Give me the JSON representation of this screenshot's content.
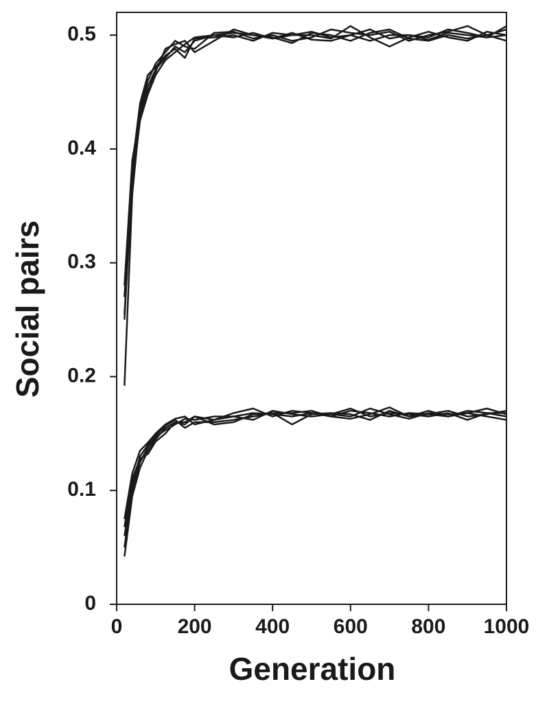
{
  "chart_data": {
    "type": "line",
    "x_label": "Generation",
    "y_label": "Social pairs",
    "x": [
      20,
      40,
      60,
      80,
      100,
      125,
      150,
      175,
      200,
      250,
      300,
      350,
      400,
      450,
      500,
      550,
      600,
      650,
      700,
      750,
      800,
      850,
      900,
      950,
      1000
    ],
    "series": [
      {
        "color": "#1a1a1a",
        "values": [
          0.192,
          0.36,
          0.43,
          0.455,
          0.47,
          0.48,
          0.49,
          0.485,
          0.495,
          0.5,
          0.498,
          0.502,
          0.497,
          0.5,
          0.503,
          0.498,
          0.5,
          0.505,
          0.497,
          0.5,
          0.496,
          0.502,
          0.5,
          0.498,
          0.5
        ]
      },
      {
        "color": "#1a1a1a",
        "values": [
          0.25,
          0.38,
          0.435,
          0.46,
          0.475,
          0.485,
          0.495,
          0.49,
          0.488,
          0.502,
          0.503,
          0.497,
          0.5,
          0.495,
          0.498,
          0.505,
          0.502,
          0.5,
          0.503,
          0.495,
          0.5,
          0.503,
          0.508,
          0.5,
          0.495
        ]
      },
      {
        "color": "#1a1a1a",
        "values": [
          0.27,
          0.385,
          0.44,
          0.465,
          0.472,
          0.482,
          0.488,
          0.48,
          0.497,
          0.498,
          0.5,
          0.495,
          0.502,
          0.5,
          0.5,
          0.497,
          0.508,
          0.498,
          0.49,
          0.498,
          0.503,
          0.498,
          0.495,
          0.503,
          0.5
        ]
      },
      {
        "color": "#1a1a1a",
        "values": [
          0.28,
          0.39,
          0.43,
          0.45,
          0.468,
          0.488,
          0.492,
          0.495,
          0.485,
          0.495,
          0.505,
          0.5,
          0.498,
          0.493,
          0.502,
          0.5,
          0.495,
          0.502,
          0.505,
          0.497,
          0.495,
          0.5,
          0.497,
          0.5,
          0.505
        ]
      },
      {
        "color": "#1a1a1a",
        "values": [
          0.255,
          0.37,
          0.425,
          0.448,
          0.465,
          0.478,
          0.485,
          0.492,
          0.498,
          0.5,
          0.502,
          0.5,
          0.497,
          0.502,
          0.496,
          0.495,
          0.5,
          0.495,
          0.5,
          0.5,
          0.498,
          0.505,
          0.502,
          0.498,
          0.508
        ]
      },
      {
        "color": "#1a1a1a",
        "values": [
          0.042,
          0.095,
          0.12,
          0.135,
          0.145,
          0.155,
          0.16,
          0.158,
          0.165,
          0.162,
          0.165,
          0.168,
          0.167,
          0.165,
          0.168,
          0.167,
          0.172,
          0.165,
          0.168,
          0.167,
          0.165,
          0.168,
          0.162,
          0.168,
          0.165
        ]
      },
      {
        "color": "#1a1a1a",
        "values": [
          0.06,
          0.105,
          0.13,
          0.14,
          0.148,
          0.157,
          0.162,
          0.155,
          0.16,
          0.16,
          0.162,
          0.165,
          0.168,
          0.158,
          0.167,
          0.168,
          0.167,
          0.162,
          0.17,
          0.165,
          0.17,
          0.165,
          0.168,
          0.172,
          0.167
        ]
      },
      {
        "color": "#1a1a1a",
        "values": [
          0.075,
          0.115,
          0.135,
          0.142,
          0.15,
          0.158,
          0.163,
          0.165,
          0.158,
          0.162,
          0.168,
          0.172,
          0.165,
          0.17,
          0.168,
          0.165,
          0.17,
          0.168,
          0.165,
          0.168,
          0.167,
          0.17,
          0.165,
          0.167,
          0.17
        ]
      },
      {
        "color": "#1a1a1a",
        "values": [
          0.05,
          0.1,
          0.125,
          0.138,
          0.147,
          0.153,
          0.158,
          0.163,
          0.162,
          0.165,
          0.165,
          0.162,
          0.17,
          0.167,
          0.165,
          0.167,
          0.165,
          0.172,
          0.167,
          0.163,
          0.168,
          0.167,
          0.168,
          0.165,
          0.162
        ]
      },
      {
        "color": "#1a1a1a",
        "values": [
          0.068,
          0.11,
          0.128,
          0.132,
          0.143,
          0.15,
          0.16,
          0.16,
          0.165,
          0.158,
          0.16,
          0.167,
          0.168,
          0.168,
          0.17,
          0.165,
          0.163,
          0.167,
          0.173,
          0.165,
          0.167,
          0.165,
          0.17,
          0.168,
          0.168
        ]
      }
    ],
    "xlim": [
      0,
      1000
    ],
    "xticks": [
      0,
      200,
      400,
      600,
      800,
      1000
    ],
    "ylim": [
      0,
      0.52
    ],
    "yticks": [
      0,
      0.1,
      0.2,
      0.3,
      0.4,
      0.5
    ]
  }
}
